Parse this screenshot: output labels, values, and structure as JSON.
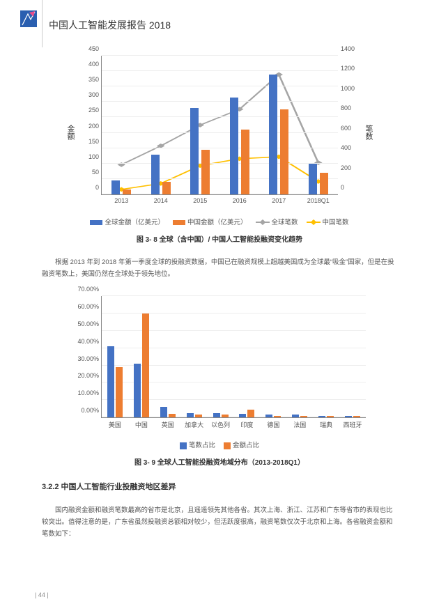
{
  "header": {
    "title": "中国人工智能发展报告 2018"
  },
  "page_number": "| 44 |",
  "chart1": {
    "type": "bar+line",
    "categories": [
      "2013",
      "2014",
      "2015",
      "2016",
      "2017",
      "2018Q1"
    ],
    "left_axis": {
      "label": "金额",
      "min": 0,
      "max": 450,
      "step": 50,
      "ticks": [
        "0",
        "50",
        "100",
        "150",
        "200",
        "250",
        "300",
        "350",
        "400",
        "450"
      ]
    },
    "right_axis": {
      "label": "笔数",
      "min": 0,
      "max": 1400,
      "step": 200,
      "ticks": [
        "0",
        "200",
        "400",
        "600",
        "800",
        "1000",
        "1200",
        "1400"
      ]
    },
    "bars": {
      "global": {
        "label": "全球金额（亿美元）",
        "color": "#4472c4",
        "values": [
          45,
          130,
          280,
          315,
          390,
          100
        ]
      },
      "china": {
        "label": "中国金额（亿美元）",
        "color": "#ed7d31",
        "values": [
          15,
          40,
          145,
          210,
          275,
          70
        ]
      }
    },
    "lines": {
      "global_cnt": {
        "label": "全球笔数",
        "color": "#a5a5a5",
        "values": [
          300,
          490,
          700,
          860,
          1210,
          320
        ]
      },
      "china_cnt": {
        "label": "中国笔数",
        "color": "#ffc000",
        "values": [
          50,
          110,
          290,
          360,
          380,
          130
        ]
      }
    },
    "caption": "图 3- 8 全球（含中国）/ 中国人工智能投融资变化趋势"
  },
  "para1": "根据 2013 年到 2018 年第一季度全球的投融资数据，中国已在融资规模上超越美国成为全球最“吸金”国家，但是在投融资笔数上，美国仍然在全球处于领先地位。",
  "chart2": {
    "type": "bar",
    "categories": [
      "美国",
      "中国",
      "英国",
      "加拿大",
      "以色列",
      "印度",
      "德国",
      "法国",
      "瑞典",
      "西班牙"
    ],
    "y_axis": {
      "min": 0,
      "max": 0.7,
      "step": 0.1,
      "ticks": [
        "0.00%",
        "10.00%",
        "20.00%",
        "30.00%",
        "40.00%",
        "50.00%",
        "60.00%",
        "70.00%"
      ]
    },
    "series": {
      "count": {
        "label": "笔数占比",
        "color": "#4472c4",
        "values": [
          0.41,
          0.31,
          0.06,
          0.025,
          0.025,
          0.02,
          0.015,
          0.015,
          0.01,
          0.01
        ]
      },
      "amount": {
        "label": "金额占比",
        "color": "#ed7d31",
        "values": [
          0.29,
          0.6,
          0.02,
          0.015,
          0.015,
          0.045,
          0.01,
          0.01,
          0.01,
          0.008
        ]
      }
    },
    "caption": "图 3- 9  全球人工智能投融资地域分布（2013-2018Q1）"
  },
  "section": "3.2.2 中国人工智能行业投融资地区差异",
  "para2": "国内融资金额和融资笔数最高的省市是北京，且遥遥领先其他各省。其次上海、浙江、江苏和广东等省市的表现也比较突出。值得注意的是，广东省虽然投融资总额相对较少，但活跃度很高，融资笔数仅次于北京和上海。各省融资金额和笔数如下：",
  "colors": {
    "blue": "#4472c4",
    "orange": "#ed7d31",
    "grey": "#a5a5a5",
    "yellow": "#ffc000"
  }
}
